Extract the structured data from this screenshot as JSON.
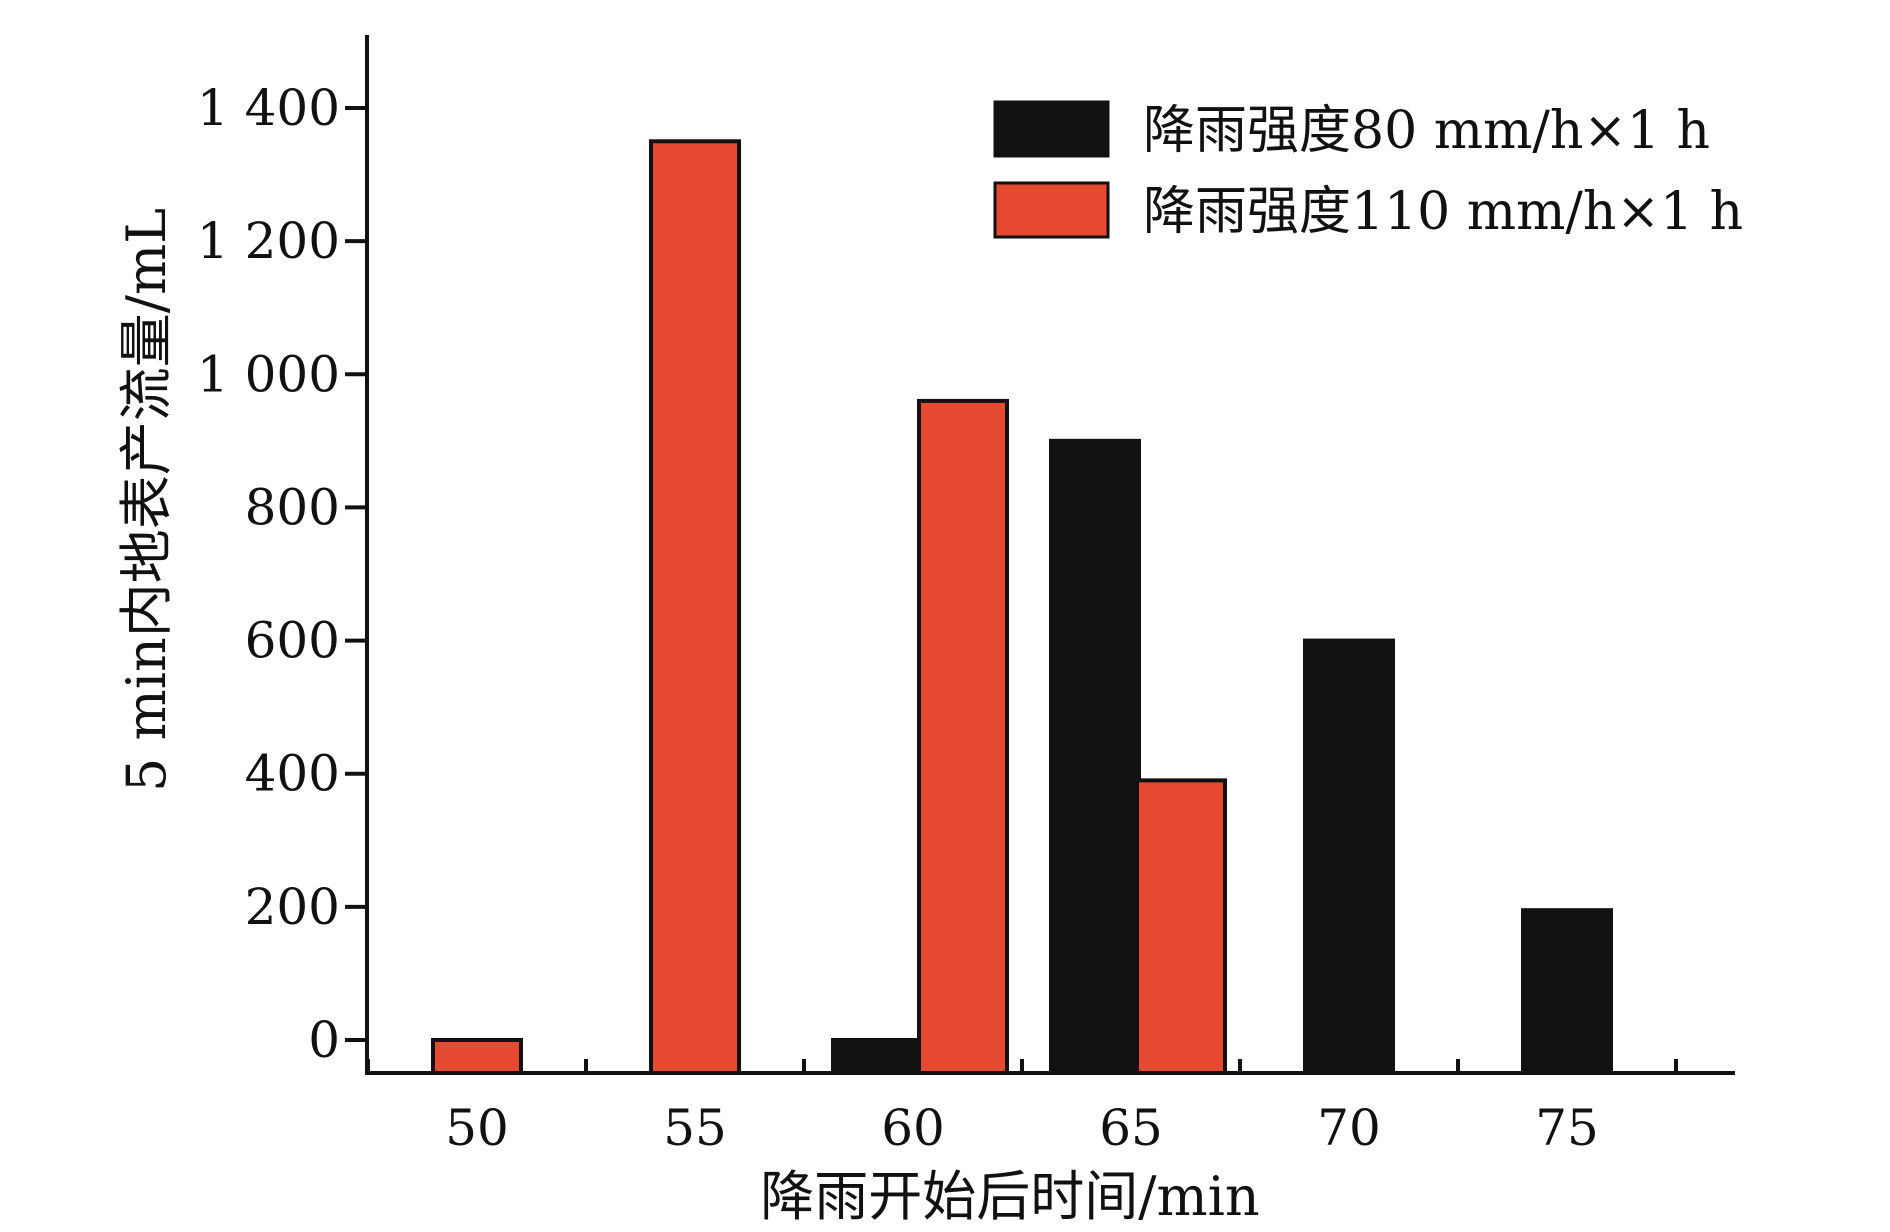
{
  "chart_data": {
    "type": "bar",
    "title": "",
    "xlabel": "降雨开始后时间/min",
    "ylabel": "5 min内地表产流量/mL",
    "categories": [
      "50",
      "55",
      "60",
      "65",
      "70",
      "75"
    ],
    "yticks": [
      {
        "value": 0,
        "label": "0"
      },
      {
        "value": 200,
        "label": "200"
      },
      {
        "value": 400,
        "label": "400"
      },
      {
        "value": 600,
        "label": "600"
      },
      {
        "value": 800,
        "label": "800"
      },
      {
        "value": 1000,
        "label": "1 000"
      },
      {
        "value": 1200,
        "label": "1 200"
      },
      {
        "value": 1400,
        "label": "1 400"
      }
    ],
    "ylim": [
      -50,
      1400
    ],
    "grid": false,
    "legend_position": "top-right",
    "series": [
      {
        "name": "降雨强度80 mm/h×1 h",
        "color": "#111111",
        "values": [
          null,
          null,
          0,
          900,
          600,
          195
        ]
      },
      {
        "name": "降雨强度110 mm/h×1 h",
        "color": "#e64a30",
        "values": [
          0,
          1350,
          960,
          390,
          null,
          null
        ]
      }
    ]
  }
}
